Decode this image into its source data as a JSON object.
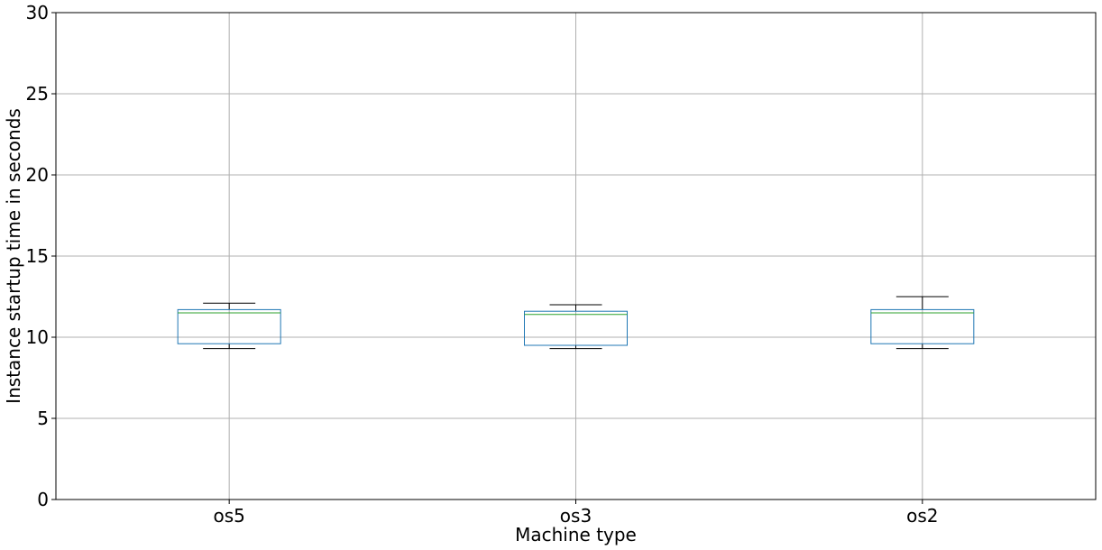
{
  "chart_data": {
    "type": "box",
    "title": "",
    "xlabel": "Machine type",
    "ylabel": "Instance startup time in seconds",
    "ylim": [
      0,
      30
    ],
    "yticks": [
      0,
      5,
      10,
      15,
      20,
      25,
      30
    ],
    "grid": true,
    "categories": [
      "os5",
      "os3",
      "os2"
    ],
    "boxes": [
      {
        "category": "os5",
        "whisker_low": 9.3,
        "q1": 9.6,
        "median": 11.5,
        "q3": 11.7,
        "whisker_high": 12.1
      },
      {
        "category": "os3",
        "whisker_low": 9.3,
        "q1": 9.5,
        "median": 11.4,
        "q3": 11.6,
        "whisker_high": 12.0
      },
      {
        "category": "os2",
        "whisker_low": 9.3,
        "q1": 9.6,
        "median": 11.5,
        "q3": 11.7,
        "whisker_high": 12.5
      }
    ],
    "colors": {
      "box": "#1f77b4",
      "median": "#2ca02c",
      "whisker": "#000000",
      "grid": "#b0b0b0",
      "axes": "#000000"
    }
  }
}
